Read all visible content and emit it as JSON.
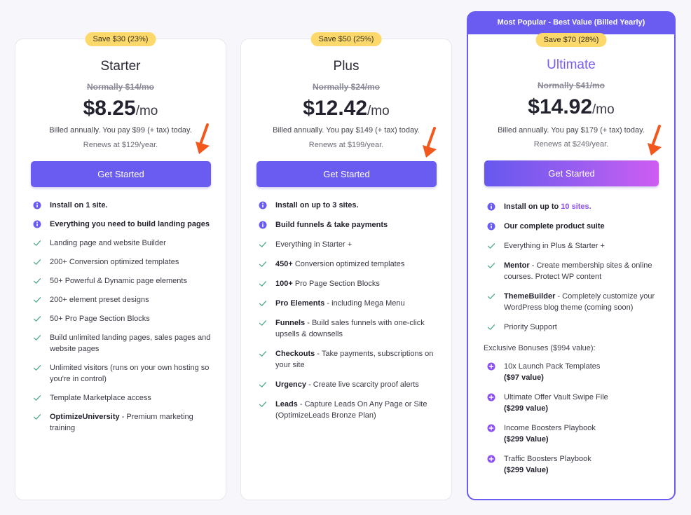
{
  "colors": {
    "accent": "#6a5cf0",
    "badge": "#fcd96a",
    "check": "#4fa88a",
    "arrow": "#f2581c",
    "highlight": "#8a4ef2"
  },
  "plans": [
    {
      "id": "starter",
      "save": "Save $30 (23%)",
      "name": "Starter",
      "normally": "Normally $14/mo",
      "price": "$8.25",
      "per": "/mo",
      "billed": "Billed annually. You pay $99 (+ tax) today.",
      "renews": "Renews at $129/year.",
      "cta": "Get Started",
      "features": [
        {
          "icon": "info-icon",
          "bold": "Install on 1 site.",
          "text": ""
        },
        {
          "icon": "info-icon",
          "bold": "Everything you need to build landing pages",
          "text": ""
        },
        {
          "icon": "check-icon",
          "bold": "",
          "text": "Landing page and website Builder"
        },
        {
          "icon": "check-icon",
          "bold": "",
          "text": "200+ Conversion optimized templates"
        },
        {
          "icon": "check-icon",
          "bold": "",
          "text": "50+ Powerful & Dynamic page elements"
        },
        {
          "icon": "check-icon",
          "bold": "",
          "text": "200+ element preset designs"
        },
        {
          "icon": "check-icon",
          "bold": "",
          "text": "50+ Pro Page Section Blocks"
        },
        {
          "icon": "check-icon",
          "bold": "",
          "text": "Build unlimited landing pages, sales pages and website pages"
        },
        {
          "icon": "check-icon",
          "bold": "",
          "text": "Unlimited visitors (runs on your own hosting so you're in control)"
        },
        {
          "icon": "check-icon",
          "bold": "",
          "text": "Template Marketplace access"
        },
        {
          "icon": "check-icon",
          "bold": "OptimizeUniversity",
          "text": " - Premium marketing training"
        }
      ]
    },
    {
      "id": "plus",
      "save": "Save $50 (25%)",
      "name": "Plus",
      "normally": "Normally $24/mo",
      "price": "$12.42",
      "per": "/mo",
      "billed": "Billed annually. You pay $149 (+ tax) today.",
      "renews": "Renews at $199/year.",
      "cta": "Get Started",
      "features": [
        {
          "icon": "info-icon",
          "bold": "Install on up to 3 sites.",
          "text": ""
        },
        {
          "icon": "info-icon",
          "bold": "Build funnels & take payments",
          "text": ""
        },
        {
          "icon": "check-icon",
          "bold": "",
          "text": "Everything in Starter +"
        },
        {
          "icon": "check-icon",
          "bold": "450+",
          "text": " Conversion optimized templates"
        },
        {
          "icon": "check-icon",
          "bold": "100+",
          "text": " Pro Page Section Blocks"
        },
        {
          "icon": "check-icon",
          "bold": "Pro Elements",
          "text": " - including Mega Menu"
        },
        {
          "icon": "check-icon",
          "bold": "Funnels",
          "text": " - Build sales funnels with one-click upsells & downsells"
        },
        {
          "icon": "check-icon",
          "bold": "Checkouts",
          "text": " - Take payments, subscriptions on your site"
        },
        {
          "icon": "check-icon",
          "bold": "Urgency",
          "text": " - Create live scarcity proof alerts"
        },
        {
          "icon": "check-icon",
          "bold": "Leads",
          "text": " - Capture Leads On Any Page or Site (OptimizeLeads Bronze Plan)"
        }
      ]
    },
    {
      "id": "ultimate",
      "banner": "Most Popular - Best Value (Billed Yearly)",
      "save": "Save $70 (28%)",
      "name": "Ultimate",
      "normally": "Normally $41/mo",
      "price": "$14.92",
      "per": "/mo",
      "billed": "Billed annually. You pay $179 (+ tax) today.",
      "renews": "Renews at $249/year.",
      "cta": "Get Started",
      "features": [
        {
          "icon": "info-icon",
          "bold": "Install on up to ",
          "accent": "10 sites.",
          "text": ""
        },
        {
          "icon": "info-icon",
          "bold": "Our complete product suite",
          "text": ""
        },
        {
          "icon": "check-icon",
          "bold": "",
          "text": "Everything in Plus & Starter +"
        },
        {
          "icon": "check-icon",
          "bold": "Mentor",
          "text": " - Create membership sites & online courses. Protect WP content"
        },
        {
          "icon": "check-icon",
          "bold": "ThemeBuilder",
          "text": " - Completely customize your WordPress blog theme (coming soon)"
        },
        {
          "icon": "check-icon",
          "bold": "",
          "text": "Priority Support"
        }
      ],
      "bonus_heading": "Exclusive Bonuses ($994 value):",
      "bonuses": [
        {
          "icon": "plus-circle-icon",
          "text": "10x Launch Pack Templates",
          "value": "($97 value)"
        },
        {
          "icon": "plus-circle-icon",
          "text": "Ultimate Offer Vault Swipe File",
          "value": "($299 value)"
        },
        {
          "icon": "plus-circle-icon",
          "text": "Income Boosters Playbook",
          "value": "($299 Value)"
        },
        {
          "icon": "plus-circle-icon",
          "text": "Traffic Boosters Playbook",
          "value": "($299 Value)"
        }
      ]
    }
  ]
}
